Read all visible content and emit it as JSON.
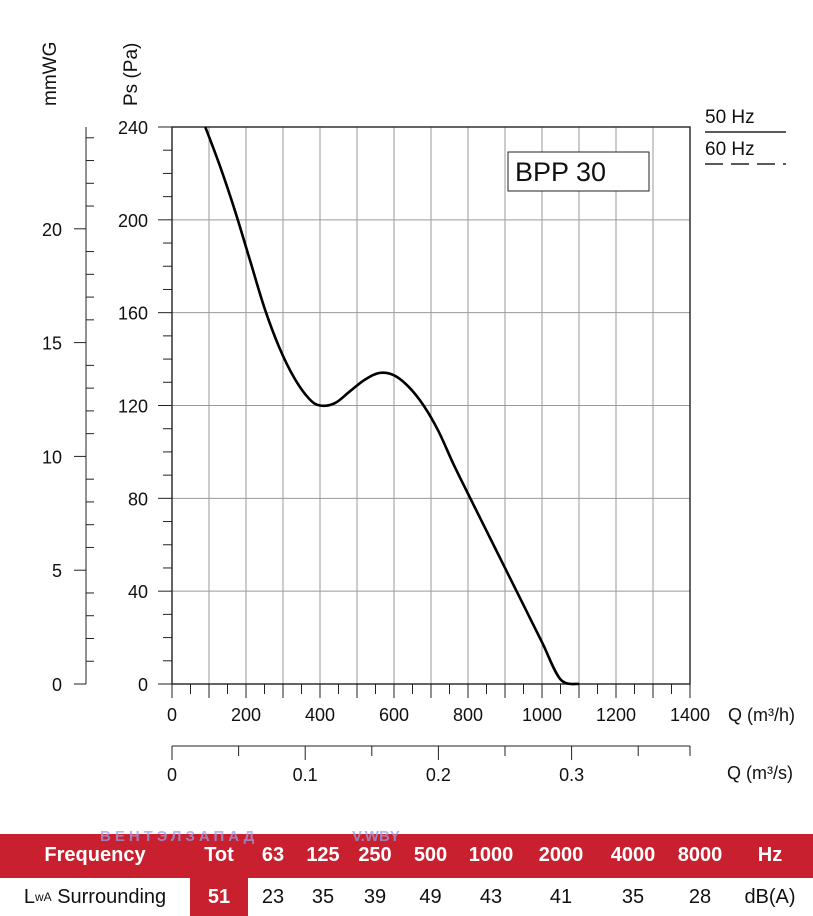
{
  "chart_data": {
    "type": "line",
    "title": "BPP 30",
    "xlabel": "Q (m³/h)",
    "x2label": "Q (m³/s)",
    "ylabel": "Ps (Pa)",
    "y2label": "mmWG",
    "xlim": [
      0,
      1400
    ],
    "ylim": [
      0,
      240
    ],
    "x_ticks": [
      "0",
      "200",
      "400",
      "600",
      "800",
      "1000",
      "1200",
      "1400"
    ],
    "x2_ticks": [
      "0",
      "0.1",
      "0.2",
      "0.3"
    ],
    "y_ticks": [
      "0",
      "40",
      "80",
      "120",
      "160",
      "200",
      "240"
    ],
    "y2_ticks": [
      "0",
      "5",
      "10",
      "15",
      "20"
    ],
    "grid": true,
    "legend": [
      {
        "label": "50 Hz",
        "style": "solid"
      },
      {
        "label": "60 Hz",
        "style": "dashed"
      }
    ],
    "series": [
      {
        "name": "50 Hz",
        "x": [
          90,
          130,
          170,
          210,
          250,
          290,
          330,
          370,
          400,
          440,
          480,
          520,
          560,
          600,
          640,
          680,
          720,
          760,
          800,
          850,
          900,
          950,
          1000,
          1050,
          1100
        ],
        "y": [
          240,
          223,
          204,
          183,
          162,
          145,
          132,
          123,
          120,
          121,
          126,
          131,
          134,
          133,
          128,
          120,
          109,
          95,
          82,
          66,
          50,
          34,
          18,
          2,
          0
        ]
      }
    ]
  },
  "table": {
    "watermark_1": "ВЕНТЭЛЗАПАД",
    "watermark_2": "V.WBY",
    "header_label": "Frequency",
    "header_cells": [
      "Tot",
      "63",
      "125",
      "250",
      "500",
      "1000",
      "2000",
      "4000",
      "8000",
      "Hz"
    ],
    "row_label_main": "L",
    "row_label_sub": "wA",
    "row_label_rest": "Surrounding",
    "row_cells": [
      "51",
      "23",
      "35",
      "39",
      "49",
      "43",
      "41",
      "35",
      "28",
      "dB(A)"
    ]
  },
  "colors": {
    "table_red": "#c8202f",
    "grid": "#9a9a9a",
    "curve": "#000000"
  }
}
